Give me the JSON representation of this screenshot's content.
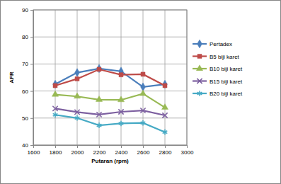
{
  "chart_data": {
    "type": "line",
    "x_label": "Putaran (rpm)",
    "y_label": "AFR",
    "x": [
      1800,
      2000,
      2200,
      2400,
      2600,
      2800
    ],
    "xlim": [
      1600,
      3000
    ],
    "xticks": [
      1600,
      1800,
      2000,
      2200,
      2400,
      2600,
      2800,
      3000
    ],
    "ylim": [
      40,
      90
    ],
    "yticks": [
      40,
      50,
      60,
      70,
      80,
      90
    ],
    "grid": true,
    "legend": "right",
    "series": [
      {
        "name": "Pertadex",
        "color": "#4a7ebb",
        "marker": "diamond",
        "values": [
          62.5,
          66.8,
          68.3,
          67.3,
          61.5,
          62.5
        ]
      },
      {
        "name": "B5 biji karet",
        "color": "#be4b48",
        "marker": "square",
        "values": [
          62,
          64.5,
          68,
          66,
          66.2,
          62
        ]
      },
      {
        "name": "B10 biji karet",
        "color": "#98b954",
        "marker": "triangle",
        "values": [
          58.7,
          58,
          56.8,
          56.7,
          59,
          53.9
        ]
      },
      {
        "name": "B15 biji karet",
        "color": "#7d60a0",
        "marker": "x",
        "values": [
          53.5,
          52.2,
          51.3,
          52.3,
          52.8,
          51
        ]
      },
      {
        "name": "B20 biji karet",
        "color": "#46aac5",
        "marker": "star",
        "values": [
          51.2,
          50,
          47.3,
          48,
          48.2,
          44.8
        ]
      }
    ]
  }
}
